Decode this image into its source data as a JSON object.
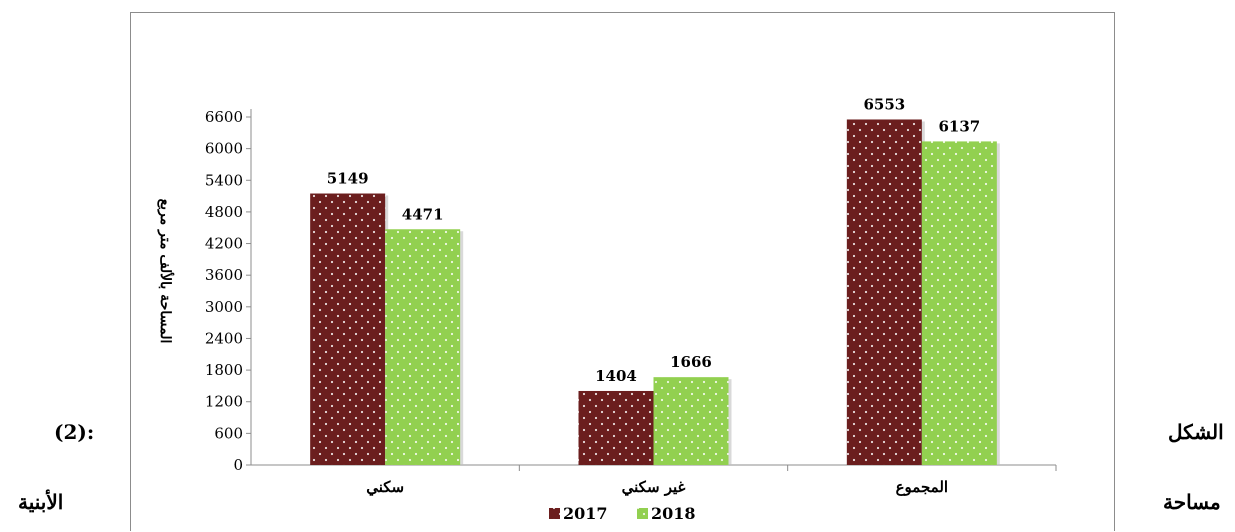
{
  "side_labels": {
    "figure_word": "الشكل",
    "figure_number": "(2):",
    "area_word": "مساحة",
    "buildings_word": "الأبنية"
  },
  "chart_data": {
    "type": "bar",
    "categories": [
      "سكني",
      "غير سكني",
      "المجموع"
    ],
    "series": [
      {
        "name": "2017",
        "values": [
          5149,
          1404,
          6553
        ],
        "color": "#6b1e1e",
        "pattern": "dots"
      },
      {
        "name": "2018",
        "values": [
          4471,
          1666,
          6137
        ],
        "color": "#92d050",
        "pattern": "dots"
      }
    ],
    "ylabel": "المساحة بالألف متر مربع",
    "xlabel": "",
    "ylim": [
      0,
      6600
    ],
    "yticks": [
      0,
      600,
      1200,
      1800,
      2400,
      3000,
      3600,
      4200,
      4800,
      5400,
      6000,
      6600
    ],
    "data_labels": true,
    "legend": "bottom-center",
    "grid": false
  }
}
